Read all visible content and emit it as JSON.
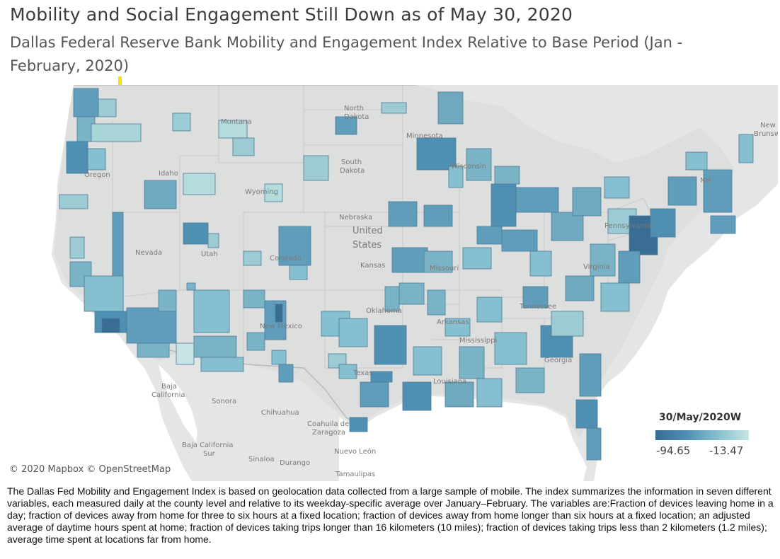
{
  "header": {
    "title": "Mobility and Social Engagement Still Down as of May 30, 2020",
    "subtitle": "Dallas Federal Reserve Bank Mobility and  Engagement Index Relative to Base Period (Jan -February,  2020)"
  },
  "map": {
    "attribution": "© 2020 Mapbox © OpenStreetMap",
    "country_label_line1": "United",
    "country_label_line2": "States",
    "place_labels": {
      "north_dakota_1": "North",
      "north_dakota_2": "Dakota",
      "south_dakota_1": "South",
      "south_dakota_2": "Dakota",
      "minnesota": "Minnesota",
      "wisconsin": "Wisconsin",
      "montana": "Montana",
      "oregon": "Oregon",
      "idaho": "Idaho",
      "wyoming": "Wyoming",
      "nebraska": "Nebraska",
      "nevada": "Nevada",
      "utah": "Utah",
      "colorado": "Colorado",
      "kansas": "Kansas",
      "missouri": "Missouri",
      "oklahoma": "Oklahoma",
      "arkansas": "Arkansas",
      "mississippi": "Mississippi",
      "new_mexico": "New Mexico",
      "texas": "Texas",
      "louisiana": "Louisiana",
      "georgia": "Georgia",
      "tennessee": "Tennessee",
      "virginia": "Virginia",
      "pennsylvania": "Pennsylvania",
      "new_brunswick_1": "New",
      "new_brunswick_2": "Brunswick",
      "new_hampshire": "NH",
      "baja_california_1": "Baja",
      "baja_california_2": "California",
      "baja_california_sur_1": "Baja California",
      "baja_california_sur_2": "Sur",
      "sonora": "Sonora",
      "chihuahua": "Chihuahua",
      "coahuila_1": "Coahuila de",
      "coahuila_2": "Zaragoza",
      "nuevo_leon": "Nuevo León",
      "sinaloa": "Sinaloa",
      "durango": "Durango",
      "tamaulipas": "Tamaulipas"
    },
    "colors": {
      "background": "#eceded",
      "land": "#e3e4e4",
      "us_land": "#dcdddd",
      "water": "#ffffff",
      "scale_min": "#3a6d94",
      "scale_mid": "#5f9dbb",
      "scale_max": "#c6e5e4"
    }
  },
  "legend": {
    "title": "30/May/2020W",
    "min_label": "-94.65",
    "max_label": "-13.47",
    "min_value": -94.65,
    "max_value": -13.47
  },
  "footnote": "The Dallas Fed Mobility and Engagement Index is based on geolocation data collected from a large sample of mobile. The index  summarizes the information in seven different variables, each measured daily at the county level and relative to its weekday-specific average over January–February. The variables are:Fraction of devices leaving home in a day; fraction of devices away from home for three to six hours at a fixed location; fraction of devices away from home longer than six hours at a fixed location; an adjusted average of daytime hours spent at home; fraction of devices taking trips longer than 16 kilometers (10 miles); fraction of devices taking trips less than 2 kilometers (1.2 miles); average time spent at locations far from home."
}
